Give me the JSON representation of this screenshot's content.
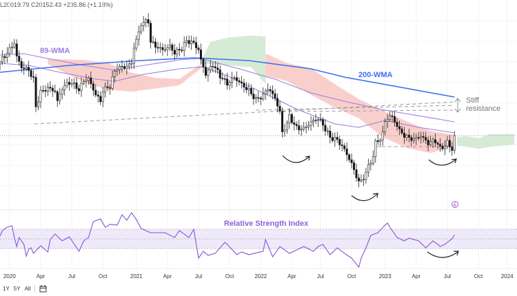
{
  "header": {
    "ohlc_text": "L20019.79 C20152.43 +235.86 (+1.18%)"
  },
  "toolbar": {
    "ranges": [
      "1Y",
      "5Y",
      "All"
    ],
    "calendar_icon": "calendar-icon"
  },
  "colors": {
    "wma200": "#3d6ff0",
    "wma89": "#9a7de0",
    "bear_cloud": "#f8c7c3",
    "bull_cloud": "#cfe8cf",
    "rsi": "#8a62d8",
    "rsi_band": "#efeafa",
    "annotation": "#777777"
  },
  "chart_data": {
    "type": "candlestick",
    "title": "",
    "x_unit": "weeks from first bar",
    "price_current": 20152.43,
    "closes_anchor": [
      [
        0,
        27105
      ],
      [
        3,
        28080
      ],
      [
        6,
        29055
      ],
      [
        7,
        27755
      ],
      [
        9,
        26780
      ],
      [
        12,
        26455
      ],
      [
        14,
        25480
      ],
      [
        15,
        22880
      ],
      [
        16,
        23530
      ],
      [
        17,
        24180
      ],
      [
        20,
        24505
      ],
      [
        23,
        24180
      ],
      [
        24,
        23205
      ],
      [
        26,
        24505
      ],
      [
        29,
        25155
      ],
      [
        32,
        24830
      ],
      [
        33,
        24505
      ],
      [
        35,
        25480
      ],
      [
        37,
        25675
      ],
      [
        40,
        24180
      ],
      [
        42,
        23530
      ],
      [
        43,
        24505
      ],
      [
        46,
        24830
      ],
      [
        48,
        26130
      ],
      [
        49,
        26455
      ],
      [
        52,
        26455
      ],
      [
        55,
        26780
      ],
      [
        56,
        28405
      ],
      [
        58,
        29705
      ],
      [
        59,
        30680
      ],
      [
        62,
        31005
      ],
      [
        63,
        29055
      ],
      [
        65,
        28730
      ],
      [
        68,
        28405
      ],
      [
        71,
        28730
      ],
      [
        73,
        28080
      ],
      [
        76,
        28405
      ],
      [
        78,
        29055
      ],
      [
        81,
        28730
      ],
      [
        83,
        28080
      ],
      [
        84,
        27105
      ],
      [
        85,
        26455
      ],
      [
        86,
        25805
      ],
      [
        89,
        26780
      ],
      [
        92,
        25805
      ],
      [
        95,
        25155
      ],
      [
        98,
        25805
      ],
      [
        101,
        25155
      ],
      [
        104,
        24505
      ],
      [
        107,
        23530
      ],
      [
        110,
        23855
      ],
      [
        112,
        24505
      ],
      [
        115,
        23530
      ],
      [
        117,
        22230
      ],
      [
        118,
        20280
      ],
      [
        120,
        21255
      ],
      [
        121,
        21905
      ],
      [
        124,
        20930
      ],
      [
        127,
        20930
      ],
      [
        130,
        21580
      ],
      [
        133,
        21905
      ],
      [
        135,
        21255
      ],
      [
        138,
        19955
      ],
      [
        141,
        19630
      ],
      [
        144,
        18655
      ],
      [
        147,
        17355
      ],
      [
        148,
        16705
      ],
      [
        150,
        15730
      ],
      [
        151,
        15730
      ],
      [
        153,
        16705
      ],
      [
        156,
        18330
      ],
      [
        157,
        19630
      ],
      [
        159,
        19955
      ],
      [
        160,
        20605
      ],
      [
        161,
        21580
      ],
      [
        163,
        22230
      ],
      [
        164,
        21905
      ],
      [
        166,
        21255
      ],
      [
        167,
        20605
      ],
      [
        170,
        19955
      ],
      [
        173,
        19630
      ],
      [
        176,
        19955
      ],
      [
        179,
        19305
      ],
      [
        182,
        19630
      ],
      [
        184,
        18980
      ],
      [
        186,
        19305
      ],
      [
        187,
        19630
      ],
      [
        189,
        18980
      ],
      [
        190,
        20152
      ]
    ],
    "wma200": [
      [
        0,
        26130
      ],
      [
        29,
        26780
      ],
      [
        58,
        27235
      ],
      [
        81,
        27495
      ],
      [
        104,
        27235
      ],
      [
        130,
        26455
      ],
      [
        144,
        25675
      ],
      [
        190,
        23790
      ]
    ],
    "wma89": [
      [
        0,
        27755
      ],
      [
        10,
        27885
      ],
      [
        20,
        27430
      ],
      [
        35,
        26780
      ],
      [
        48,
        26325
      ],
      [
        60,
        26780
      ],
      [
        75,
        27300
      ],
      [
        84,
        27430
      ],
      [
        100,
        26455
      ],
      [
        115,
        25480
      ],
      [
        130,
        24180
      ],
      [
        145,
        23335
      ],
      [
        161,
        22555
      ],
      [
        190,
        21450
      ]
    ],
    "wma_short": [
      [
        0,
        26975
      ],
      [
        12,
        26780
      ],
      [
        25,
        26130
      ],
      [
        40,
        25480
      ],
      [
        48,
        25285
      ],
      [
        60,
        25935
      ],
      [
        75,
        26455
      ],
      [
        85,
        26650
      ],
      [
        95,
        25805
      ],
      [
        110,
        24180
      ],
      [
        125,
        22555
      ],
      [
        140,
        21255
      ],
      [
        150,
        20930
      ],
      [
        161,
        21580
      ],
      [
        175,
        20930
      ],
      [
        190,
        20410
      ]
    ],
    "cloud": [
      {
        "kind": "bear",
        "points": [
          [
            20,
            27400,
            26900
          ],
          [
            35,
            27300,
            25200
          ],
          [
            45,
            27000,
            24500
          ],
          [
            55,
            26100,
            24300
          ],
          [
            65,
            25600,
            24600
          ],
          [
            75,
            25500,
            24900
          ],
          [
            84,
            26900,
            26500
          ]
        ]
      },
      {
        "kind": "bull",
        "points": [
          [
            84,
            27200,
            26900
          ],
          [
            88,
            29000,
            26900
          ],
          [
            95,
            29400,
            26800
          ],
          [
            105,
            29600,
            26600
          ],
          [
            111,
            29500,
            25000
          ]
        ]
      },
      {
        "kind": "bear",
        "points": [
          [
            111,
            27900,
            25800
          ],
          [
            120,
            27000,
            25300
          ],
          [
            130,
            26500,
            24000
          ],
          [
            140,
            25000,
            22800
          ],
          [
            150,
            23600,
            21800
          ],
          [
            160,
            22500,
            20000
          ],
          [
            170,
            21500,
            19000
          ],
          [
            180,
            20600,
            18500
          ],
          [
            190,
            20200,
            19200
          ]
        ]
      },
      {
        "kind": "bull",
        "points": [
          [
            191,
            20000,
            19200
          ],
          [
            195,
            20100,
            19100
          ],
          [
            200,
            19900,
            18900
          ],
          [
            205,
            20300,
            19100
          ],
          [
            215,
            20300,
            19300
          ]
        ]
      }
    ],
    "trendlines": [
      [
        [
          14.4,
          21255
        ],
        [
          190,
          23335
        ]
      ],
      [
        [
          107,
          22555
        ],
        [
          190,
          23010
        ]
      ],
      [
        [
          118,
          22425
        ],
        [
          190,
          22555
        ]
      ],
      [
        [
          157,
          19110
        ],
        [
          190,
          19110
        ]
      ]
    ],
    "rsi": {
      "label": "Relative Strength Index",
      "levels": [
        60,
        50,
        40
      ],
      "values": [
        [
          0,
          52.9
        ],
        [
          1,
          58.6
        ],
        [
          3,
          62.1
        ],
        [
          5,
          63.6
        ],
        [
          6,
          51.4
        ],
        [
          7,
          42.1
        ],
        [
          8,
          51.4
        ],
        [
          10,
          44.3
        ],
        [
          11,
          32.1
        ],
        [
          12,
          39.3
        ],
        [
          13,
          40.7
        ],
        [
          14,
          35
        ],
        [
          17,
          42.9
        ],
        [
          20,
          36.4
        ],
        [
          21,
          49.3
        ],
        [
          23,
          55
        ],
        [
          26,
          47.9
        ],
        [
          29,
          52.1
        ],
        [
          33,
          37.1
        ],
        [
          35,
          47.9
        ],
        [
          37,
          51.4
        ],
        [
          39,
          67.9
        ],
        [
          42,
          70.7
        ],
        [
          44,
          62.1
        ],
        [
          46,
          65
        ],
        [
          49,
          64.3
        ],
        [
          51,
          75
        ],
        [
          53,
          69.3
        ],
        [
          55,
          77.1
        ],
        [
          57,
          70
        ],
        [
          59,
          60.7
        ],
        [
          63,
          56.4
        ],
        [
          69,
          56.4
        ],
        [
          73,
          51.4
        ],
        [
          75,
          58.6
        ],
        [
          79,
          51.4
        ],
        [
          81,
          60
        ],
        [
          83,
          30
        ],
        [
          85,
          37.1
        ],
        [
          87,
          32.9
        ],
        [
          90,
          35
        ],
        [
          94,
          46.4
        ],
        [
          95,
          44.3
        ],
        [
          99,
          33.6
        ],
        [
          101,
          36.4
        ],
        [
          104,
          33.6
        ],
        [
          110,
          37.1
        ],
        [
          111,
          49.3
        ],
        [
          114,
          31.4
        ],
        [
          117,
          42.1
        ],
        [
          121,
          35
        ],
        [
          127,
          42.1
        ],
        [
          131,
          37.1
        ],
        [
          133,
          42.1
        ],
        [
          135,
          44.3
        ],
        [
          138,
          33.6
        ],
        [
          141,
          40.7
        ],
        [
          144,
          35
        ],
        [
          147,
          30
        ],
        [
          150,
          20.7
        ],
        [
          151,
          30
        ],
        [
          153,
          40.7
        ],
        [
          155,
          53.6
        ],
        [
          158,
          56.4
        ],
        [
          161,
          64.3
        ],
        [
          162,
          66.4
        ],
        [
          163,
          62.1
        ],
        [
          166,
          51.4
        ],
        [
          169,
          47.9
        ],
        [
          171,
          50.7
        ],
        [
          175,
          47.9
        ],
        [
          178,
          40.7
        ],
        [
          181,
          47.9
        ],
        [
          183,
          44.3
        ],
        [
          184,
          42.1
        ],
        [
          186,
          44.3
        ],
        [
          187,
          46.4
        ],
        [
          189,
          50
        ],
        [
          190,
          54.3
        ]
      ]
    },
    "x_ticks": [
      [
        4,
        "2020"
      ],
      [
        17,
        "Apr"
      ],
      [
        30,
        "Jul"
      ],
      [
        43,
        "Oct"
      ],
      [
        57,
        "2021"
      ],
      [
        70,
        "Apr"
      ],
      [
        83,
        "Jul"
      ],
      [
        96,
        "Oct"
      ],
      [
        109,
        "2022"
      ],
      [
        122,
        "Apr"
      ],
      [
        134,
        "Jul"
      ],
      [
        147,
        "Oct"
      ],
      [
        161,
        "2023"
      ],
      [
        174,
        "Apr"
      ],
      [
        187,
        "Jul"
      ],
      [
        200,
        "Oct"
      ],
      [
        212,
        "2024"
      ]
    ],
    "annotations": {
      "wma89": "89-WMA",
      "wma200": "200-WMA",
      "resistance_1": "Stiff",
      "resistance_2": "resistance"
    }
  }
}
